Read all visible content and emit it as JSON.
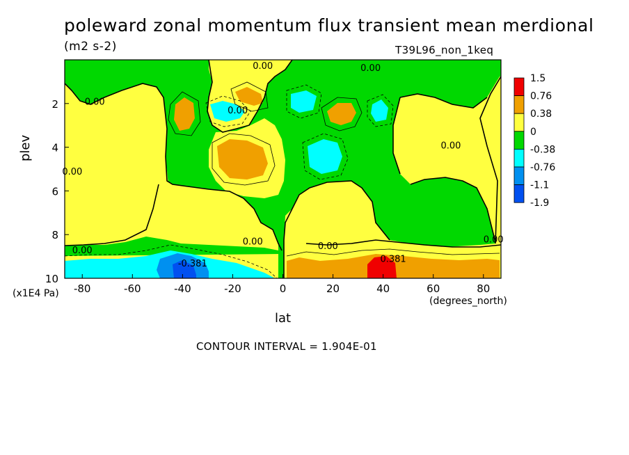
{
  "title": "poleward zonal momentum flux transient mean merdional",
  "units": "(m2 s-2)",
  "experiment": "T39L96_non_1keq",
  "y_axis_label": "plev",
  "y_axis_unit": "(x1E4 Pa)",
  "x_axis_label": "lat",
  "x_axis_unit": "(degrees_north)",
  "contour_interval_text": "CONTOUR INTERVAL = 1.904E-01",
  "colors": {
    "red": "#f00000",
    "orange": "#f0a000",
    "yellow": "#ffff40",
    "green": "#00d800",
    "cyan": "#00ffff",
    "blue": "#0090f0",
    "darkblue": "#0050f0"
  },
  "chart_data": {
    "type": "heatmap",
    "x_range": [
      -87,
      87
    ],
    "y_range": [
      10,
      0
    ],
    "x_ticks": [
      {
        "value": -80,
        "label": "-80"
      },
      {
        "value": -60,
        "label": "-60"
      },
      {
        "value": -40,
        "label": "-40"
      },
      {
        "value": -20,
        "label": "-20"
      },
      {
        "value": 0,
        "label": "0"
      },
      {
        "value": 20,
        "label": "20"
      },
      {
        "value": 40,
        "label": "40"
      },
      {
        "value": 60,
        "label": "60"
      },
      {
        "value": 80,
        "label": "80"
      }
    ],
    "y_ticks": [
      {
        "value": 2,
        "label": "2"
      },
      {
        "value": 4,
        "label": "4"
      },
      {
        "value": 6,
        "label": "6"
      },
      {
        "value": 8,
        "label": "8"
      },
      {
        "value": 10,
        "label": "10"
      }
    ],
    "colorbar": [
      {
        "label": "1.5",
        "color": "#f00000"
      },
      {
        "label": "0.76",
        "color": "#f0a000"
      },
      {
        "label": "0.38",
        "color": "#ffff40"
      },
      {
        "label": "0",
        "color": "#00d800"
      },
      {
        "label": "-0.38",
        "color": "#00ffff"
      },
      {
        "label": "-0.76",
        "color": "#0090f0"
      },
      {
        "label": "-1.1",
        "color": "#0050f0"
      },
      {
        "label": "-1.9",
        "color": null
      }
    ],
    "contour_labels": [
      {
        "text": "0.00",
        "lat": -8,
        "plev": 0.25
      },
      {
        "text": "0.00",
        "lat": 35,
        "plev": 0.35
      },
      {
        "text": "0.00",
        "lat": -75,
        "plev": 1.9
      },
      {
        "text": "0.00",
        "lat": -18,
        "plev": 2.3
      },
      {
        "text": "0.00",
        "lat": -84,
        "plev": 5.1
      },
      {
        "text": "0.00",
        "lat": 67,
        "plev": 3.9
      },
      {
        "text": "0.00",
        "lat": -12,
        "plev": 8.3
      },
      {
        "text": "0.00",
        "lat": 18,
        "plev": 8.5
      },
      {
        "text": "0.00",
        "lat": 84,
        "plev": 8.2
      },
      {
        "text": "0.00",
        "lat": -80,
        "plev": 8.7
      },
      {
        "text": "-0.381",
        "lat": -36,
        "plev": 9.3
      },
      {
        "text": "0.381",
        "lat": 44,
        "plev": 9.1
      }
    ]
  }
}
